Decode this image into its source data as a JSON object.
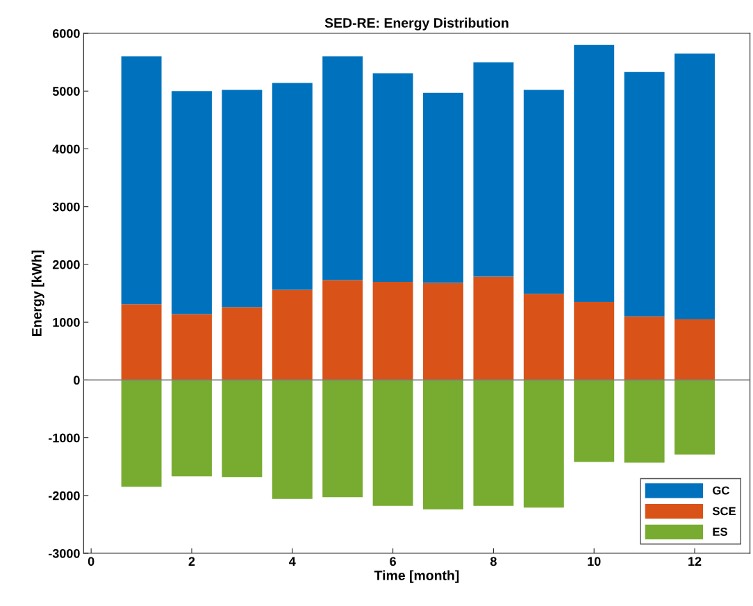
{
  "chart_data": {
    "type": "bar",
    "stacked": true,
    "title": "SED-RE: Energy Distribution",
    "xlabel": "Time [month]",
    "ylabel": "Energy [kWh]",
    "x": [
      1,
      2,
      3,
      4,
      5,
      6,
      7,
      8,
      9,
      10,
      11,
      12
    ],
    "series": [
      {
        "name": "SCE",
        "color": "#d95319",
        "values": [
          1310,
          1140,
          1260,
          1560,
          1730,
          1700,
          1680,
          1790,
          1490,
          1350,
          1100,
          1050
        ]
      },
      {
        "name": "GC",
        "color": "#0072bd",
        "values": [
          4290,
          3860,
          3760,
          3580,
          3870,
          3610,
          3290,
          3710,
          3530,
          4450,
          4230,
          4600
        ]
      },
      {
        "name": "ES",
        "color": "#77ac30",
        "values": [
          -1850,
          -1670,
          -1680,
          -2060,
          -2030,
          -2180,
          -2240,
          -2180,
          -2210,
          -1420,
          -1430,
          -1290
        ]
      }
    ],
    "xlim": [
      -0.15,
      13.1
    ],
    "xticks": [
      0,
      2,
      4,
      6,
      8,
      10,
      12
    ],
    "ylim": [
      -3000,
      6000
    ],
    "yticks": [
      -3000,
      -2000,
      -1000,
      0,
      1000,
      2000,
      3000,
      4000,
      5000,
      6000
    ],
    "ref_lines": [
      {
        "axis": "y",
        "value": 0,
        "color": "#808080"
      }
    ],
    "legend": "bottom right",
    "grid": false
  }
}
